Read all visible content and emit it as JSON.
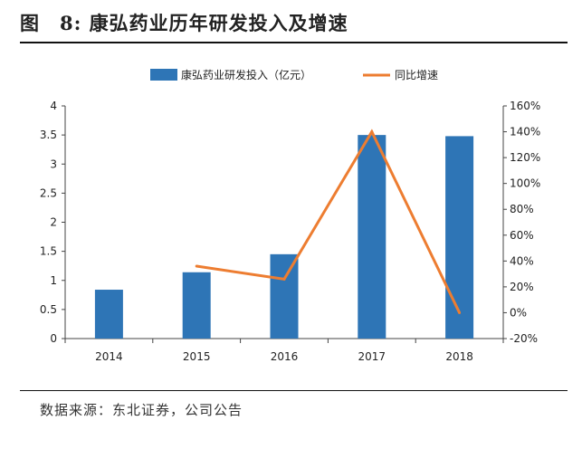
{
  "figure": {
    "title": "图　8:  康弘药业历年研发投入及增速",
    "source": "数据来源：东北证券，公司公告"
  },
  "colors": {
    "bar": "#2E75B6",
    "line": "#ED7D31",
    "axis": "#444444"
  },
  "chart_data": {
    "type": "bar",
    "categories": [
      "2014",
      "2015",
      "2016",
      "2017",
      "2018"
    ],
    "series": [
      {
        "name": "康弘药业研发投入（亿元）",
        "type": "bar",
        "axis": "left",
        "values": [
          0.84,
          1.14,
          1.45,
          3.5,
          3.48
        ]
      },
      {
        "name": "同比增速",
        "type": "line",
        "axis": "right",
        "values": [
          null,
          36,
          26,
          140,
          0
        ]
      }
    ],
    "y_left": {
      "min": 0,
      "max": 4,
      "ticks": [
        "0",
        "0.5",
        "1",
        "1.5",
        "2",
        "2.5",
        "3",
        "3.5",
        "4"
      ]
    },
    "y_right": {
      "min": -20,
      "max": 160,
      "ticks": [
        "-20%",
        "0%",
        "20%",
        "40%",
        "60%",
        "80%",
        "100%",
        "120%",
        "140%",
        "160%"
      ]
    },
    "legend_position": "top",
    "grid": false
  }
}
